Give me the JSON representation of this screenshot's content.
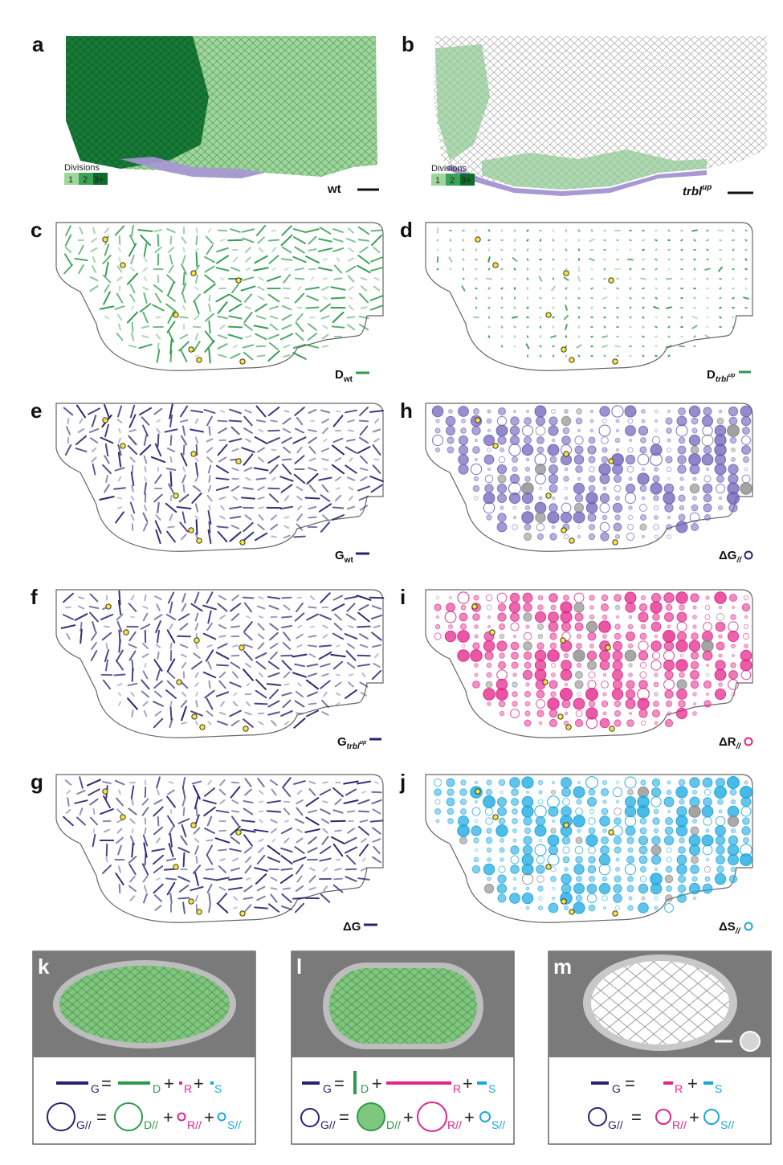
{
  "colors": {
    "green_dark": "#0a6e2e",
    "green_mid": "#2e9a4a",
    "green_light": "#8ccc8c",
    "green_fill": "#7fc77f",
    "navy": "#27236f",
    "purple": "#6e62b8",
    "purple_light": "#b3aee0",
    "magenta": "#e2268a",
    "cyan": "#1aa7e0",
    "gray": "#888888",
    "yellow": "#f5e53b",
    "outline": "#666666",
    "panel_bg": "#7a7a7a"
  },
  "panels": {
    "a": {
      "label": "a",
      "legend_title": "Divisions",
      "legend_items": [
        "1",
        "2",
        "3+"
      ],
      "genotype": "wt"
    },
    "b": {
      "label": "b",
      "legend_title": "Divisions",
      "legend_items": [
        "1",
        "2",
        "3+"
      ],
      "genotype": "trbl",
      "genotype_sup": "up"
    },
    "c": {
      "label": "c",
      "symbol": "D",
      "sub": "wt"
    },
    "d": {
      "label": "d",
      "symbol": "D",
      "sub": "trbl",
      "sub_sup": "up"
    },
    "e": {
      "label": "e",
      "symbol": "G",
      "sub": "wt"
    },
    "h": {
      "label": "h",
      "symbol": "ΔG",
      "sub": "//"
    },
    "f": {
      "label": "f",
      "symbol": "G",
      "sub": "trbl",
      "sub_sup": "up"
    },
    "i": {
      "label": "i",
      "symbol": "ΔR",
      "sub": "//"
    },
    "g": {
      "label": "g",
      "symbol": "ΔG"
    },
    "j": {
      "label": "j",
      "symbol": "ΔS",
      "sub": "//"
    },
    "k": {
      "label": "k"
    },
    "l": {
      "label": "l"
    },
    "m": {
      "label": "m"
    }
  },
  "equations": {
    "G": "G",
    "D": "D",
    "R": "R",
    "S": "S",
    "G_par": "G//",
    "D_par": "D//",
    "R_par": "R//",
    "S_par": "S//",
    "eq": "=",
    "plus": "+"
  }
}
